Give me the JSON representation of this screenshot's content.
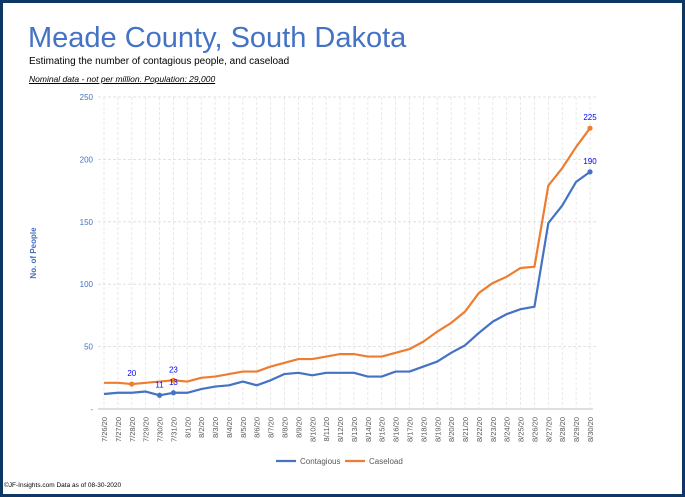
{
  "header": {
    "title": "Meade County, South Dakota",
    "subtitle": "Estimating  the number of contagious people, and caseload",
    "note": "Nominal data - not per million.  Population: 29,000"
  },
  "footer": "©JF-Insights.com  Data as of 08-30-2020",
  "colors": {
    "contagious": "#4472c4",
    "caseload": "#ed7d31",
    "labels": "#0000ff",
    "frame": "#0d3866"
  },
  "chart_data": {
    "type": "line",
    "ylabel": "No. of People",
    "ylim": [
      0,
      250
    ],
    "yticks": [
      0,
      50,
      100,
      150,
      200,
      250
    ],
    "ytick_labels": [
      "-",
      "50",
      "100",
      "150",
      "200",
      "250"
    ],
    "grid": true,
    "legend": "bottom",
    "x": [
      "7/26/20",
      "7/27/20",
      "7/28/20",
      "7/29/20",
      "7/30/20",
      "7/31/20",
      "8/1/20",
      "8/2/20",
      "8/3/20",
      "8/4/20",
      "8/5/20",
      "8/6/20",
      "8/7/20",
      "8/8/20",
      "8/9/20",
      "8/10/20",
      "8/11/20",
      "8/12/20",
      "8/13/20",
      "8/14/20",
      "8/15/20",
      "8/16/20",
      "8/17/20",
      "8/18/20",
      "8/19/20",
      "8/20/20",
      "8/21/20",
      "8/22/20",
      "8/23/20",
      "8/24/20",
      "8/25/20",
      "8/26/20",
      "8/27/20",
      "8/28/20",
      "8/29/20",
      "8/30/20"
    ],
    "series": [
      {
        "name": "Contagious",
        "values": [
          12,
          13,
          13,
          14,
          11,
          13,
          13,
          16,
          18,
          19,
          22,
          19,
          23,
          28,
          29,
          27,
          29,
          29,
          29,
          26,
          26,
          30,
          30,
          34,
          38,
          45,
          51,
          61,
          70,
          76,
          80,
          82,
          149,
          163,
          182,
          190
        ]
      },
      {
        "name": "Caseload",
        "values": [
          21,
          21,
          20,
          21,
          22,
          23,
          22,
          25,
          26,
          28,
          30,
          30,
          34,
          37,
          40,
          40,
          42,
          44,
          44,
          42,
          42,
          45,
          48,
          54,
          62,
          69,
          78,
          93,
          101,
          106,
          113,
          114,
          179,
          193,
          210,
          225
        ]
      }
    ],
    "annotations": [
      {
        "series": "Caseload",
        "x": "7/28/20",
        "text": "20"
      },
      {
        "series": "Contagious",
        "x": "7/30/20",
        "text": "11"
      },
      {
        "series": "Caseload",
        "x": "7/31/20",
        "text": "23"
      },
      {
        "series": "Contagious",
        "x": "7/31/20",
        "text": "13"
      },
      {
        "series": "Caseload",
        "x": "8/30/20",
        "text": "225"
      },
      {
        "series": "Contagious",
        "x": "8/30/20",
        "text": "190"
      }
    ]
  }
}
